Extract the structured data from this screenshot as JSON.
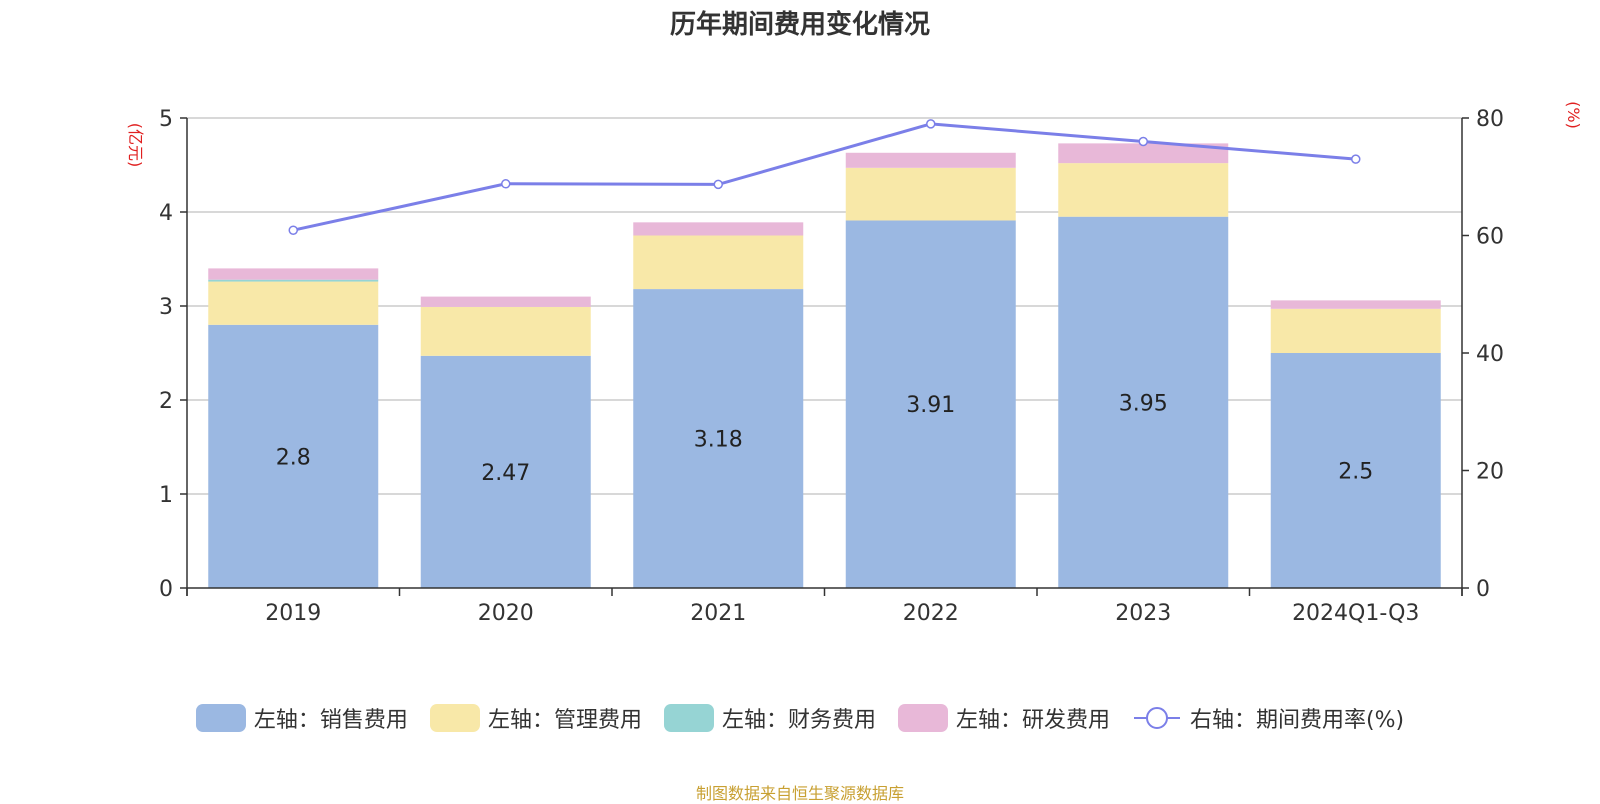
{
  "chart_data": {
    "type": "bar",
    "stacked": true,
    "title": "历年期间费用变化情况",
    "categories": [
      "2019",
      "2020",
      "2021",
      "2022",
      "2023",
      "2024Q1-Q3"
    ],
    "ylabel_left": "(亿元)",
    "ylabel_right": "(%)",
    "ylim_left": [
      0,
      5
    ],
    "ylim_right": [
      0,
      80
    ],
    "yticks_left": [
      "0",
      "1",
      "2",
      "3",
      "4",
      "5"
    ],
    "yticks_right": [
      "0",
      "20",
      "40",
      "60",
      "80"
    ],
    "grid": true,
    "legend_position": "bottom",
    "series": [
      {
        "name": "左轴：销售费用",
        "axis": "left",
        "color": "#9bb8e2",
        "values": [
          2.8,
          2.47,
          3.18,
          3.91,
          3.95,
          2.5
        ],
        "labels": [
          "2.8",
          "2.47",
          "3.18",
          "3.91",
          "3.95",
          "2.5"
        ]
      },
      {
        "name": "左轴：管理费用",
        "axis": "left",
        "color": "#f8e8a8",
        "values": [
          0.46,
          0.52,
          0.57,
          0.56,
          0.57,
          0.47
        ]
      },
      {
        "name": "左轴：财务费用",
        "axis": "left",
        "color": "#96d4d4",
        "values": [
          0.02,
          0.0,
          0.0,
          0.0,
          0.0,
          0.0
        ]
      },
      {
        "name": "左轴：研发费用",
        "axis": "left",
        "color": "#e8b8d8",
        "values": [
          0.12,
          0.11,
          0.14,
          0.16,
          0.21,
          0.09
        ]
      },
      {
        "name": "右轴：期间费用率(%)",
        "axis": "right",
        "type": "line",
        "color": "#7b7fe8",
        "values": [
          60.9,
          68.8,
          68.7,
          79.0,
          76.0,
          73.0
        ]
      }
    ],
    "source": "制图数据来自恒生聚源数据库"
  }
}
